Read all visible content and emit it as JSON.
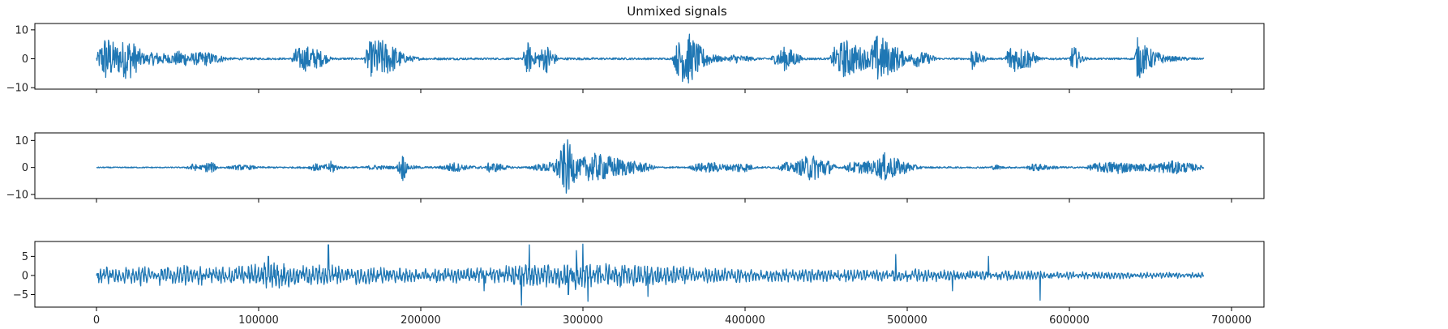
{
  "chart_data": [
    {
      "type": "line",
      "title": "Unmixed signals",
      "xlabel": "",
      "ylabel": "",
      "xlim": [
        -38000,
        720000
      ],
      "ylim": [
        -10.5,
        12.2
      ],
      "yticks": [
        10,
        0,
        -10
      ],
      "xticks": [
        0,
        100000,
        200000,
        300000,
        400000,
        500000,
        600000,
        700000
      ],
      "show_xtick_labels": false,
      "grid": false,
      "series": [
        {
          "color": "#1f77b4",
          "x_range": [
            0,
            683000
          ],
          "amplitude_envelope": [
            [
              0,
              1
            ],
            [
              5000,
              8.5
            ],
            [
              8000,
              7.5
            ],
            [
              12000,
              5
            ],
            [
              20000,
              7.5
            ],
            [
              30000,
              1.5
            ],
            [
              36000,
              2.5
            ],
            [
              45000,
              1.5
            ],
            [
              52000,
              3
            ],
            [
              58000,
              2
            ],
            [
              68000,
              2.5
            ],
            [
              82000,
              0.4
            ],
            [
              120000,
              0.3
            ],
            [
              122000,
              3.5
            ],
            [
              130000,
              4.5
            ],
            [
              138000,
              3
            ],
            [
              145000,
              0.4
            ],
            [
              165000,
              0.3
            ],
            [
              168000,
              6
            ],
            [
              175000,
              7
            ],
            [
              185000,
              4
            ],
            [
              190000,
              1.5
            ],
            [
              200000,
              0.4
            ],
            [
              262000,
              0.3
            ],
            [
              266000,
              6
            ],
            [
              270000,
              2
            ],
            [
              278000,
              5
            ],
            [
              285000,
              0.4
            ],
            [
              355000,
              0.3
            ],
            [
              358000,
              5.5
            ],
            [
              364000,
              10
            ],
            [
              372000,
              4.5
            ],
            [
              380000,
              1.5
            ],
            [
              390000,
              0.5
            ],
            [
              392000,
              1.8
            ],
            [
              400000,
              1
            ],
            [
              410000,
              0.3
            ],
            [
              415000,
              0.4
            ],
            [
              425000,
              4.5
            ],
            [
              432000,
              2
            ],
            [
              436000,
              0.4
            ],
            [
              452000,
              0.3
            ],
            [
              455000,
              4
            ],
            [
              462000,
              7
            ],
            [
              468000,
              5
            ],
            [
              476000,
              3
            ],
            [
              482000,
              9
            ],
            [
              490000,
              5
            ],
            [
              495000,
              4
            ],
            [
              500000,
              1
            ],
            [
              505000,
              3
            ],
            [
              512000,
              2
            ],
            [
              520000,
              0.3
            ],
            [
              538000,
              0.3
            ],
            [
              540000,
              4.5
            ],
            [
              543000,
              2
            ],
            [
              546000,
              1.5
            ],
            [
              550000,
              0.3
            ],
            [
              560000,
              0.3
            ],
            [
              562000,
              5
            ],
            [
              575000,
              3.5
            ],
            [
              582000,
              0.4
            ],
            [
              600000,
              0.3
            ],
            [
              602000,
              5
            ],
            [
              608000,
              1
            ],
            [
              612000,
              0.3
            ],
            [
              640000,
              0.3
            ],
            [
              642000,
              7.5
            ],
            [
              648000,
              4
            ],
            [
              660000,
              1
            ],
            [
              683000,
              0.2
            ]
          ],
          "noise_floor": 0.25
        }
      ]
    },
    {
      "type": "line",
      "title": "",
      "xlabel": "",
      "ylabel": "",
      "xlim": [
        -38000,
        720000
      ],
      "ylim": [
        -11.5,
        12.8
      ],
      "yticks": [
        10,
        0,
        -10
      ],
      "xticks": [
        0,
        100000,
        200000,
        300000,
        400000,
        500000,
        600000,
        700000
      ],
      "show_xtick_labels": false,
      "grid": false,
      "series": [
        {
          "color": "#1f77b4",
          "x_range": [
            0,
            683000
          ],
          "amplitude_envelope": [
            [
              0,
              0.2
            ],
            [
              55000,
              0.2
            ],
            [
              58000,
              1.5
            ],
            [
              65000,
              0.8
            ],
            [
              70000,
              2.5
            ],
            [
              75000,
              0.4
            ],
            [
              80000,
              0.3
            ],
            [
              88000,
              1
            ],
            [
              95000,
              0.8
            ],
            [
              100000,
              0.3
            ],
            [
              130000,
              0.3
            ],
            [
              135000,
              1.5
            ],
            [
              140000,
              0.8
            ],
            [
              145000,
              2.5
            ],
            [
              150000,
              0.4
            ],
            [
              165000,
              0.3
            ],
            [
              170000,
              1
            ],
            [
              185000,
              0.4
            ],
            [
              189000,
              5.5
            ],
            [
              192000,
              1
            ],
            [
              200000,
              0.4
            ],
            [
              210000,
              0.3
            ],
            [
              215000,
              1
            ],
            [
              220000,
              2
            ],
            [
              228000,
              0.8
            ],
            [
              240000,
              0.4
            ],
            [
              242000,
              2
            ],
            [
              248000,
              1.5
            ],
            [
              255000,
              0.4
            ],
            [
              265000,
              0.3
            ],
            [
              270000,
              1
            ],
            [
              276000,
              1.5
            ],
            [
              283000,
              2.5
            ],
            [
              290000,
              11
            ],
            [
              294000,
              6
            ],
            [
              298000,
              3
            ],
            [
              305000,
              5.5
            ],
            [
              315000,
              4.5
            ],
            [
              330000,
              2.5
            ],
            [
              340000,
              1.5
            ],
            [
              345000,
              0.4
            ],
            [
              350000,
              0.3
            ],
            [
              365000,
              0.3
            ],
            [
              370000,
              1.5
            ],
            [
              380000,
              2
            ],
            [
              390000,
              1
            ],
            [
              396000,
              2
            ],
            [
              402000,
              1.5
            ],
            [
              406000,
              0.4
            ],
            [
              410000,
              0.3
            ],
            [
              420000,
              0.4
            ],
            [
              425000,
              2
            ],
            [
              430000,
              1.5
            ],
            [
              440000,
              5
            ],
            [
              448000,
              4
            ],
            [
              457000,
              0.4
            ],
            [
              460000,
              0.3
            ],
            [
              465000,
              2
            ],
            [
              480000,
              2.5
            ],
            [
              486000,
              5.5
            ],
            [
              495000,
              3
            ],
            [
              505000,
              1
            ],
            [
              510000,
              0.3
            ],
            [
              550000,
              0.3
            ],
            [
              555000,
              1
            ],
            [
              560000,
              0.3
            ],
            [
              573000,
              0.3
            ],
            [
              578000,
              1.5
            ],
            [
              590000,
              0.6
            ],
            [
              600000,
              0.3
            ],
            [
              610000,
              0.3
            ],
            [
              615000,
              1.5
            ],
            [
              630000,
              2.5
            ],
            [
              640000,
              1.2
            ],
            [
              650000,
              1.5
            ],
            [
              665000,
              2.5
            ],
            [
              680000,
              1
            ],
            [
              683000,
              0.3
            ]
          ],
          "noise_floor": 0.2
        }
      ]
    },
    {
      "type": "line",
      "title": "",
      "xlabel": "",
      "ylabel": "",
      "xlim": [
        -38000,
        720000
      ],
      "ylim": [
        -8.3,
        8.9
      ],
      "yticks": [
        5,
        0,
        -5
      ],
      "xticks": [
        0,
        100000,
        200000,
        300000,
        400000,
        500000,
        600000,
        700000
      ],
      "xtick_labels": [
        "0",
        "100000",
        "200000",
        "300000",
        "400000",
        "500000",
        "600000",
        "700000"
      ],
      "show_xtick_labels": true,
      "grid": false,
      "series": [
        {
          "color": "#1f77b4",
          "x_range": [
            0,
            683000
          ],
          "amplitude_envelope": [
            [
              0,
              1.8
            ],
            [
              30000,
              2.5
            ],
            [
              80000,
              2
            ],
            [
              110000,
              3
            ],
            [
              120000,
              2.5
            ],
            [
              144000,
              2.5
            ],
            [
              200000,
              1.5
            ],
            [
              240000,
              2
            ],
            [
              255000,
              2.2
            ],
            [
              262000,
              3
            ],
            [
              270000,
              2.5
            ],
            [
              290000,
              3
            ],
            [
              300000,
              3.2
            ],
            [
              330000,
              2.5
            ],
            [
              360000,
              2
            ],
            [
              400000,
              1.6
            ],
            [
              440000,
              1.5
            ],
            [
              500000,
              1.5
            ],
            [
              540000,
              1.2
            ],
            [
              580000,
              1
            ],
            [
              620000,
              0.8
            ],
            [
              683000,
              0.7
            ]
          ],
          "spikes": [
            [
              106000,
              5
            ],
            [
              143000,
              8
            ],
            [
              239000,
              -4
            ],
            [
              262000,
              -7.8
            ],
            [
              267000,
              8
            ],
            [
              291000,
              -5
            ],
            [
              296000,
              6.5
            ],
            [
              300000,
              8.2
            ],
            [
              303000,
              -6.8
            ],
            [
              340000,
              -5.5
            ],
            [
              493000,
              5.5
            ],
            [
              528000,
              -4
            ],
            [
              550000,
              5
            ],
            [
              582000,
              -6.5
            ]
          ],
          "noise_floor": 0.5
        }
      ]
    }
  ]
}
